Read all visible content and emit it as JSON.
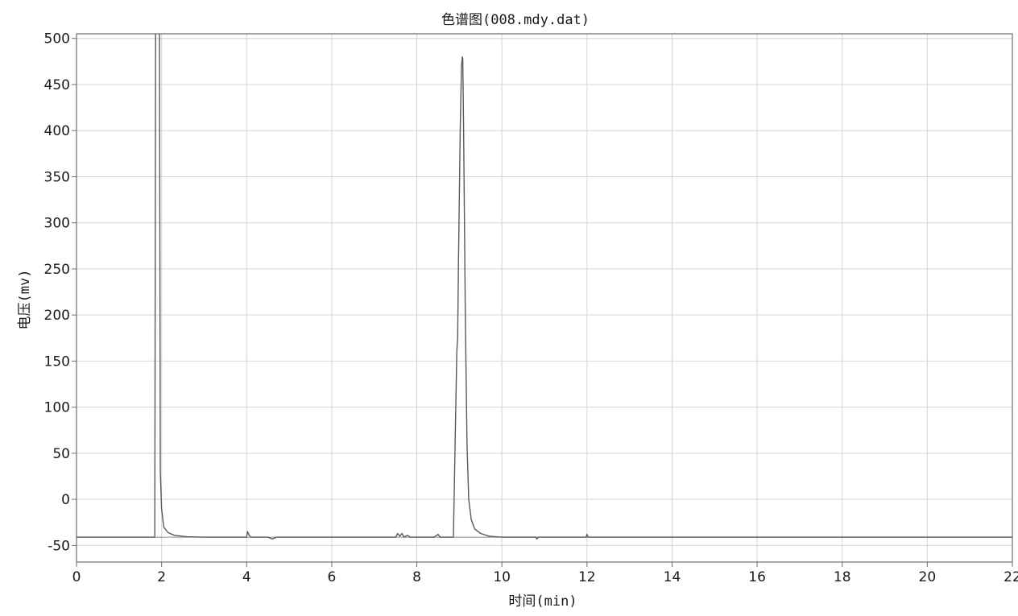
{
  "chart_data": {
    "type": "line",
    "title": "色谱图(008.mdy.dat)",
    "xlabel": "时间(min)",
    "ylabel": "电压(mv)",
    "xlim": [
      0,
      22
    ],
    "ylim": [
      -68,
      505
    ],
    "x_ticks": [
      0,
      2,
      4,
      6,
      8,
      10,
      12,
      14,
      16,
      18,
      20,
      22
    ],
    "y_ticks": [
      -50,
      0,
      50,
      100,
      150,
      200,
      250,
      300,
      350,
      400,
      450,
      500
    ],
    "grid": true,
    "baseline": -41,
    "series": [
      {
        "color": "#5a5a5a",
        "points": [
          [
            0.0,
            -41
          ],
          [
            1.84,
            -41
          ],
          [
            1.86,
            520
          ],
          [
            1.95,
            520
          ],
          [
            1.97,
            30
          ],
          [
            2.0,
            -10
          ],
          [
            2.05,
            -30
          ],
          [
            2.15,
            -36
          ],
          [
            2.3,
            -39
          ],
          [
            2.6,
            -40.5
          ],
          [
            3.0,
            -41
          ],
          [
            4.0,
            -41
          ],
          [
            4.02,
            -35
          ],
          [
            4.06,
            -39
          ],
          [
            4.1,
            -41
          ],
          [
            4.5,
            -41
          ],
          [
            4.6,
            -43
          ],
          [
            4.7,
            -41
          ],
          [
            7.5,
            -41
          ],
          [
            7.55,
            -37
          ],
          [
            7.6,
            -40
          ],
          [
            7.65,
            -37
          ],
          [
            7.7,
            -41
          ],
          [
            7.78,
            -39
          ],
          [
            7.85,
            -41
          ],
          [
            8.4,
            -41
          ],
          [
            8.5,
            -38
          ],
          [
            8.55,
            -41
          ],
          [
            8.86,
            -41
          ],
          [
            8.9,
            60
          ],
          [
            8.94,
            160
          ],
          [
            8.96,
            175
          ],
          [
            8.98,
            260
          ],
          [
            9.02,
            400
          ],
          [
            9.05,
            470
          ],
          [
            9.07,
            480
          ],
          [
            9.08,
            478
          ],
          [
            9.1,
            400
          ],
          [
            9.14,
            200
          ],
          [
            9.18,
            60
          ],
          [
            9.22,
            0
          ],
          [
            9.28,
            -22
          ],
          [
            9.36,
            -32
          ],
          [
            9.5,
            -37
          ],
          [
            9.7,
            -40
          ],
          [
            10.0,
            -41
          ],
          [
            10.8,
            -41
          ],
          [
            10.82,
            -43
          ],
          [
            10.86,
            -41
          ],
          [
            11.98,
            -41
          ],
          [
            12.0,
            -38
          ],
          [
            12.03,
            -41
          ],
          [
            22.0,
            -41
          ]
        ]
      }
    ]
  }
}
